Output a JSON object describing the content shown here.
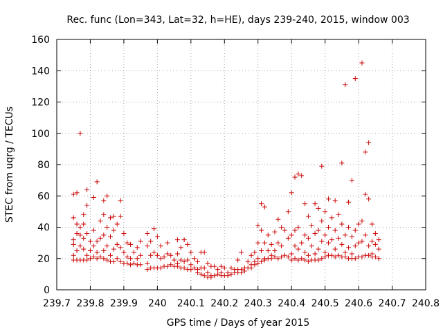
{
  "chart_data": {
    "type": "scatter",
    "title": "Rec. func (Lon=343, Lat=32, h=HE), days 239-240, 2015, window 003",
    "xlabel": "GPS time / Days of year 2015",
    "ylabel": "STEC from uqrg / TECUs",
    "xlim": [
      239.7,
      240.8
    ],
    "ylim": [
      0,
      160
    ],
    "x_ticks": [
      "239.7",
      "239.8",
      "239.9",
      "240",
      "240.1",
      "240.2",
      "240.3",
      "240.4",
      "240.5",
      "240.6",
      "240.7",
      "240.8"
    ],
    "y_ticks": [
      "0",
      "20",
      "40",
      "60",
      "80",
      "100",
      "120",
      "140",
      "160"
    ],
    "grid": true,
    "marker": "+",
    "color": "#cc0000",
    "series": [
      {
        "points": [
          [
            239.75,
            61
          ],
          [
            239.75,
            46
          ],
          [
            239.75,
            32
          ],
          [
            239.75,
            29
          ],
          [
            239.75,
            22
          ],
          [
            239.75,
            19
          ],
          [
            239.76,
            62
          ],
          [
            239.76,
            42
          ],
          [
            239.76,
            36
          ],
          [
            239.76,
            25
          ],
          [
            239.76,
            19
          ],
          [
            239.77,
            100
          ],
          [
            239.77,
            40
          ],
          [
            239.77,
            35
          ],
          [
            239.77,
            28
          ],
          [
            239.77,
            19
          ],
          [
            239.78,
            48
          ],
          [
            239.78,
            42
          ],
          [
            239.78,
            33
          ],
          [
            239.78,
            26
          ],
          [
            239.78,
            19
          ],
          [
            239.79,
            64
          ],
          [
            239.79,
            54
          ],
          [
            239.79,
            36
          ],
          [
            239.79,
            22
          ],
          [
            239.79,
            19
          ],
          [
            239.8,
            31
          ],
          [
            239.8,
            25
          ],
          [
            239.8,
            20
          ],
          [
            239.81,
            59
          ],
          [
            239.81,
            38
          ],
          [
            239.81,
            28
          ],
          [
            239.81,
            21
          ],
          [
            239.82,
            69
          ],
          [
            239.82,
            31
          ],
          [
            239.82,
            24
          ],
          [
            239.82,
            20
          ],
          [
            239.83,
            44
          ],
          [
            239.83,
            33
          ],
          [
            239.83,
            21
          ],
          [
            239.84,
            57
          ],
          [
            239.84,
            48
          ],
          [
            239.84,
            35
          ],
          [
            239.84,
            25
          ],
          [
            239.84,
            20
          ],
          [
            239.85,
            60
          ],
          [
            239.85,
            40
          ],
          [
            239.85,
            28
          ],
          [
            239.85,
            19
          ],
          [
            239.86,
            46
          ],
          [
            239.86,
            34
          ],
          [
            239.86,
            22
          ],
          [
            239.86,
            18
          ],
          [
            239.87,
            47
          ],
          [
            239.87,
            38
          ],
          [
            239.87,
            26
          ],
          [
            239.87,
            18
          ],
          [
            239.88,
            42
          ],
          [
            239.88,
            29
          ],
          [
            239.88,
            20
          ],
          [
            239.89,
            57
          ],
          [
            239.89,
            47
          ],
          [
            239.89,
            27
          ],
          [
            239.89,
            18
          ],
          [
            239.9,
            36
          ],
          [
            239.9,
            24
          ],
          [
            239.9,
            17
          ],
          [
            239.91,
            30
          ],
          [
            239.91,
            21
          ],
          [
            239.91,
            17
          ],
          [
            239.92,
            29
          ],
          [
            239.92,
            20
          ],
          [
            239.92,
            16
          ],
          [
            239.93,
            24
          ],
          [
            239.93,
            17
          ],
          [
            239.94,
            27
          ],
          [
            239.94,
            20
          ],
          [
            239.94,
            16
          ],
          [
            239.95,
            31
          ],
          [
            239.95,
            22
          ],
          [
            239.95,
            16
          ],
          [
            239.97,
            36
          ],
          [
            239.97,
            28
          ],
          [
            239.97,
            17
          ],
          [
            239.97,
            13
          ],
          [
            239.98,
            31
          ],
          [
            239.98,
            22
          ],
          [
            239.98,
            14
          ],
          [
            239.99,
            39
          ],
          [
            239.99,
            24
          ],
          [
            239.99,
            14
          ],
          [
            240.0,
            34
          ],
          [
            240.0,
            22
          ],
          [
            240.0,
            14
          ],
          [
            240.01,
            28
          ],
          [
            240.01,
            20
          ],
          [
            240.01,
            14
          ],
          [
            240.02,
            21
          ],
          [
            240.02,
            15
          ],
          [
            240.03,
            30
          ],
          [
            240.03,
            23
          ],
          [
            240.03,
            15
          ],
          [
            240.04,
            22
          ],
          [
            240.04,
            16
          ],
          [
            240.05,
            19
          ],
          [
            240.05,
            15
          ],
          [
            240.06,
            32
          ],
          [
            240.06,
            23
          ],
          [
            240.06,
            17
          ],
          [
            240.06,
            15
          ],
          [
            240.07,
            27
          ],
          [
            240.07,
            19
          ],
          [
            240.07,
            14
          ],
          [
            240.08,
            32
          ],
          [
            240.08,
            18
          ],
          [
            240.08,
            14
          ],
          [
            240.09,
            29
          ],
          [
            240.09,
            19
          ],
          [
            240.09,
            13
          ],
          [
            240.1,
            24
          ],
          [
            240.1,
            16
          ],
          [
            240.1,
            13
          ],
          [
            240.11,
            20
          ],
          [
            240.11,
            14
          ],
          [
            240.12,
            18
          ],
          [
            240.12,
            13
          ],
          [
            240.12,
            11
          ],
          [
            240.13,
            24
          ],
          [
            240.13,
            14
          ],
          [
            240.13,
            10
          ],
          [
            240.14,
            24
          ],
          [
            240.14,
            14
          ],
          [
            240.14,
            9
          ],
          [
            240.15,
            17
          ],
          [
            240.15,
            11
          ],
          [
            240.15,
            8
          ],
          [
            240.16,
            15
          ],
          [
            240.16,
            9
          ],
          [
            240.16,
            8
          ],
          [
            240.17,
            15
          ],
          [
            240.17,
            9
          ],
          [
            240.18,
            13
          ],
          [
            240.18,
            10
          ],
          [
            240.19,
            15
          ],
          [
            240.19,
            11
          ],
          [
            240.19,
            9
          ],
          [
            240.2,
            14
          ],
          [
            240.2,
            9
          ],
          [
            240.21,
            11
          ],
          [
            240.21,
            9
          ],
          [
            240.22,
            14
          ],
          [
            240.22,
            10
          ],
          [
            240.23,
            13
          ],
          [
            240.23,
            11
          ],
          [
            240.24,
            19
          ],
          [
            240.24,
            13
          ],
          [
            240.24,
            11
          ],
          [
            240.25,
            24
          ],
          [
            240.25,
            13
          ],
          [
            240.25,
            11
          ],
          [
            240.26,
            14
          ],
          [
            240.26,
            12
          ],
          [
            240.27,
            18
          ],
          [
            240.27,
            14
          ],
          [
            240.28,
            22
          ],
          [
            240.28,
            16
          ],
          [
            240.28,
            14
          ],
          [
            240.29,
            24
          ],
          [
            240.29,
            18
          ],
          [
            240.29,
            16
          ],
          [
            240.3,
            41
          ],
          [
            240.3,
            30
          ],
          [
            240.3,
            20
          ],
          [
            240.3,
            17
          ],
          [
            240.31,
            55
          ],
          [
            240.31,
            38
          ],
          [
            240.31,
            25
          ],
          [
            240.31,
            18
          ],
          [
            240.32,
            53
          ],
          [
            240.32,
            30
          ],
          [
            240.32,
            20
          ],
          [
            240.32,
            19
          ],
          [
            240.33,
            35
          ],
          [
            240.33,
            25
          ],
          [
            240.33,
            20
          ],
          [
            240.34,
            29
          ],
          [
            240.34,
            22
          ],
          [
            240.34,
            20
          ],
          [
            240.35,
            37
          ],
          [
            240.35,
            25
          ],
          [
            240.35,
            21
          ],
          [
            240.36,
            45
          ],
          [
            240.36,
            30
          ],
          [
            240.36,
            20
          ],
          [
            240.37,
            40
          ],
          [
            240.37,
            28
          ],
          [
            240.37,
            21
          ],
          [
            240.38,
            38
          ],
          [
            240.38,
            22
          ],
          [
            240.39,
            50
          ],
          [
            240.39,
            33
          ],
          [
            240.39,
            21
          ],
          [
            240.4,
            62
          ],
          [
            240.4,
            35
          ],
          [
            240.4,
            23
          ],
          [
            240.4,
            19
          ],
          [
            240.41,
            72
          ],
          [
            240.41,
            38
          ],
          [
            240.41,
            28
          ],
          [
            240.41,
            20
          ],
          [
            240.42,
            74
          ],
          [
            240.42,
            40
          ],
          [
            240.42,
            26
          ],
          [
            240.42,
            19
          ],
          [
            240.43,
            73
          ],
          [
            240.43,
            30
          ],
          [
            240.43,
            20
          ],
          [
            240.44,
            55
          ],
          [
            240.44,
            35
          ],
          [
            240.44,
            24
          ],
          [
            240.44,
            19
          ],
          [
            240.45,
            47
          ],
          [
            240.45,
            33
          ],
          [
            240.45,
            22
          ],
          [
            240.45,
            18
          ],
          [
            240.46,
            41
          ],
          [
            240.46,
            28
          ],
          [
            240.46,
            19
          ],
          [
            240.47,
            55
          ],
          [
            240.47,
            36
          ],
          [
            240.47,
            23
          ],
          [
            240.47,
            19
          ],
          [
            240.48,
            52
          ],
          [
            240.48,
            38
          ],
          [
            240.48,
            26
          ],
          [
            240.48,
            19
          ],
          [
            240.49,
            79
          ],
          [
            240.49,
            44
          ],
          [
            240.49,
            31
          ],
          [
            240.49,
            20
          ],
          [
            240.5,
            50
          ],
          [
            240.5,
            35
          ],
          [
            240.5,
            24
          ],
          [
            240.5,
            21
          ],
          [
            240.51,
            58
          ],
          [
            240.51,
            40
          ],
          [
            240.51,
            30
          ],
          [
            240.51,
            22
          ],
          [
            240.52,
            46
          ],
          [
            240.52,
            32
          ],
          [
            240.52,
            22
          ],
          [
            240.53,
            57
          ],
          [
            240.53,
            38
          ],
          [
            240.53,
            26
          ],
          [
            240.53,
            21
          ],
          [
            240.54,
            48
          ],
          [
            240.54,
            33
          ],
          [
            240.54,
            22
          ],
          [
            240.55,
            81
          ],
          [
            240.55,
            42
          ],
          [
            240.55,
            29
          ],
          [
            240.55,
            21
          ],
          [
            240.56,
            131
          ],
          [
            240.56,
            35
          ],
          [
            240.56,
            24
          ],
          [
            240.56,
            21
          ],
          [
            240.57,
            56
          ],
          [
            240.57,
            40
          ],
          [
            240.57,
            27
          ],
          [
            240.57,
            20
          ],
          [
            240.58,
            70
          ],
          [
            240.58,
            34
          ],
          [
            240.58,
            23
          ],
          [
            240.58,
            20
          ],
          [
            240.59,
            135
          ],
          [
            240.59,
            38
          ],
          [
            240.59,
            28
          ],
          [
            240.59,
            20
          ],
          [
            240.6,
            42
          ],
          [
            240.6,
            30
          ],
          [
            240.6,
            21
          ],
          [
            240.61,
            145
          ],
          [
            240.61,
            44
          ],
          [
            240.61,
            31
          ],
          [
            240.61,
            21
          ],
          [
            240.62,
            88
          ],
          [
            240.62,
            61
          ],
          [
            240.62,
            35
          ],
          [
            240.62,
            22
          ],
          [
            240.63,
            94
          ],
          [
            240.63,
            58
          ],
          [
            240.63,
            28
          ],
          [
            240.63,
            22
          ],
          [
            240.64,
            42
          ],
          [
            240.64,
            31
          ],
          [
            240.64,
            23
          ],
          [
            240.64,
            21
          ],
          [
            240.65,
            36
          ],
          [
            240.65,
            29
          ],
          [
            240.65,
            21
          ],
          [
            240.66,
            32
          ],
          [
            240.66,
            26
          ],
          [
            240.66,
            20
          ]
        ]
      }
    ]
  }
}
